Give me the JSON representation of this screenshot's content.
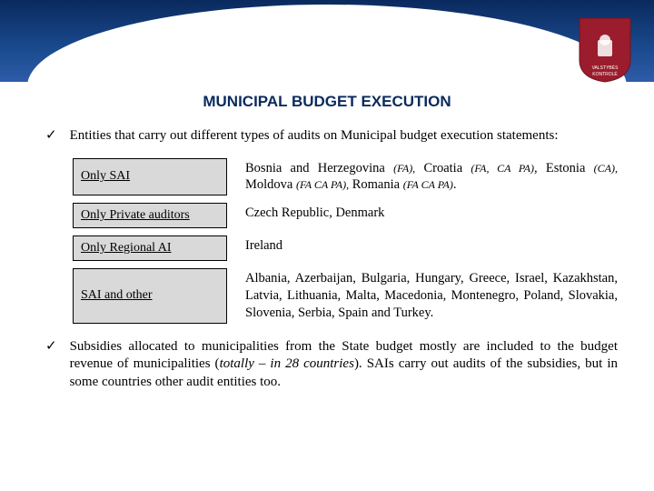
{
  "title": "MUNICIPAL BUDGET EXECUTION",
  "bullet1": "Entities that carry out different types of audits on Municipal budget execution statements:",
  "rows": [
    {
      "label": "Only SAI",
      "descHtml": "Bosnia and Herzegovina <span class='ital smaller'>(FA),</span> Croatia <span class='ital smaller'>(FA, CA PA)</span>, Estonia <span class='ital smaller'>(CA),</span> Moldova <span class='ital smaller'>(FA CA PA),</span> Romania <span class='ital smaller'>(FA CA PA)</span>."
    },
    {
      "label": "Only Private auditors",
      "descHtml": "Czech Republic, Denmark"
    },
    {
      "label": "Only Regional AI",
      "descHtml": "Ireland"
    },
    {
      "label": "SAI and other",
      "descHtml": "Albania, Azerbaijan, Bulgaria, Hungary, Greece, Israel, Kazakhstan, Latvia, Lithuania, Malta, Macedonia, Montenegro, Poland, Slovakia, Slovenia, Serbia, Spain and Turkey."
    }
  ],
  "bullet2Html": "Subsidies allocated to municipalities from the State budget mostly are included to the budget revenue of municipalities (<span class='ital'>totally – in 28 countries</span>). SAIs carry out audits of the subsidies, but in some countries other audit entities too.",
  "emblem": {
    "fill": "#9b1c2c",
    "border": "#8a1824",
    "textColor": "#ffffff"
  }
}
